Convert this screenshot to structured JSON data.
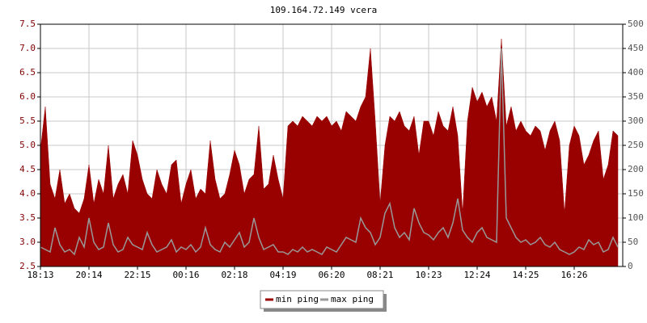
{
  "chart_data": {
    "type": "line",
    "title": "109.164.72.149 vcera",
    "categories": [
      "18:13",
      null,
      null,
      null,
      null,
      null,
      null,
      null,
      null,
      null,
      "20:14",
      null,
      null,
      null,
      null,
      null,
      null,
      null,
      null,
      null,
      "22:15",
      null,
      null,
      null,
      null,
      null,
      null,
      null,
      null,
      null,
      "00:16",
      null,
      null,
      null,
      null,
      null,
      null,
      null,
      null,
      null,
      "02:18",
      null,
      null,
      null,
      null,
      null,
      null,
      null,
      null,
      null,
      "04:19",
      null,
      null,
      null,
      null,
      null,
      null,
      null,
      null,
      null,
      "06:20",
      null,
      null,
      null,
      null,
      null,
      null,
      null,
      null,
      null,
      "08:21",
      null,
      null,
      null,
      null,
      null,
      null,
      null,
      null,
      null,
      "10:23",
      null,
      null,
      null,
      null,
      null,
      null,
      null,
      null,
      null,
      "12:24",
      null,
      null,
      null,
      null,
      null,
      null,
      null,
      null,
      null,
      "14:25",
      null,
      null,
      null,
      null,
      null,
      null,
      null,
      null,
      null,
      "16:26",
      null,
      null,
      null,
      null,
      null,
      null,
      null,
      null,
      null
    ],
    "series": [
      {
        "name": "min ping",
        "color": "#990000",
        "fill": true,
        "values": [
          4.9,
          5.8,
          4.2,
          3.9,
          4.5,
          3.8,
          4.0,
          3.7,
          3.6,
          3.9,
          4.6,
          3.8,
          4.3,
          4.0,
          5.0,
          3.9,
          4.2,
          4.4,
          4.0,
          5.1,
          4.8,
          4.3,
          4.0,
          3.9,
          4.5,
          4.2,
          4.0,
          4.6,
          4.7,
          3.8,
          4.2,
          4.5,
          3.9,
          4.1,
          4.0,
          5.1,
          4.3,
          3.9,
          4.0,
          4.4,
          4.9,
          4.6,
          4.0,
          4.3,
          4.4,
          5.4,
          4.1,
          4.2,
          4.8,
          4.3,
          3.9,
          5.4,
          5.5,
          5.4,
          5.6,
          5.5,
          5.4,
          5.6,
          5.5,
          5.6,
          5.4,
          5.5,
          5.3,
          5.7,
          5.6,
          5.5,
          5.8,
          6.0,
          7.0,
          5.5,
          3.8,
          5.0,
          5.6,
          5.5,
          5.7,
          5.4,
          5.3,
          5.6,
          4.8,
          5.5,
          5.5,
          5.2,
          5.7,
          5.4,
          5.3,
          5.8,
          5.2,
          3.6,
          5.5,
          6.2,
          5.9,
          6.1,
          5.8,
          6.0,
          5.5,
          7.2,
          5.4,
          5.8,
          5.3,
          5.5,
          5.3,
          5.2,
          5.4,
          5.3,
          4.9,
          5.3,
          5.5,
          5.1,
          3.6,
          5.0,
          5.4,
          5.2,
          4.6,
          4.8,
          5.1,
          5.3,
          4.3,
          4.6,
          5.3,
          5.2
        ]
      },
      {
        "name": "max ping",
        "color": "#999999",
        "axis": "y2",
        "values": [
          40,
          35,
          30,
          80,
          45,
          30,
          35,
          25,
          60,
          40,
          100,
          50,
          35,
          40,
          90,
          45,
          30,
          35,
          60,
          45,
          40,
          35,
          70,
          45,
          30,
          35,
          40,
          55,
          30,
          40,
          35,
          45,
          30,
          40,
          80,
          45,
          35,
          30,
          50,
          40,
          55,
          70,
          40,
          50,
          100,
          60,
          35,
          40,
          45,
          30,
          30,
          25,
          35,
          30,
          40,
          30,
          35,
          30,
          25,
          40,
          35,
          30,
          45,
          60,
          55,
          50,
          100,
          80,
          70,
          45,
          60,
          110,
          130,
          80,
          60,
          70,
          55,
          120,
          90,
          70,
          65,
          55,
          70,
          80,
          60,
          90,
          140,
          75,
          60,
          50,
          70,
          80,
          60,
          55,
          50,
          450,
          100,
          80,
          60,
          50,
          55,
          45,
          50,
          60,
          45,
          40,
          50,
          35,
          30,
          25,
          30,
          40,
          35,
          55,
          45,
          50,
          30,
          35,
          60,
          40
        ]
      }
    ],
    "ylim": [
      2.5,
      7.5
    ],
    "yticks": [
      2.5,
      {
        "value": 3,
        "label": "3.0"
      },
      3.5,
      {
        "value": 4,
        "label": "4.0"
      },
      4.5,
      {
        "value": 5,
        "label": "5.0"
      },
      5.5,
      {
        "value": 6,
        "label": "6.0"
      },
      6.5,
      {
        "value": 7,
        "label": "7.0"
      },
      7.5
    ],
    "y2lim": [
      0,
      500
    ],
    "y2ticks": [
      0,
      50,
      100,
      150,
      200,
      250,
      300,
      350,
      400,
      450,
      500
    ],
    "grid": true,
    "legend": "bottom"
  }
}
